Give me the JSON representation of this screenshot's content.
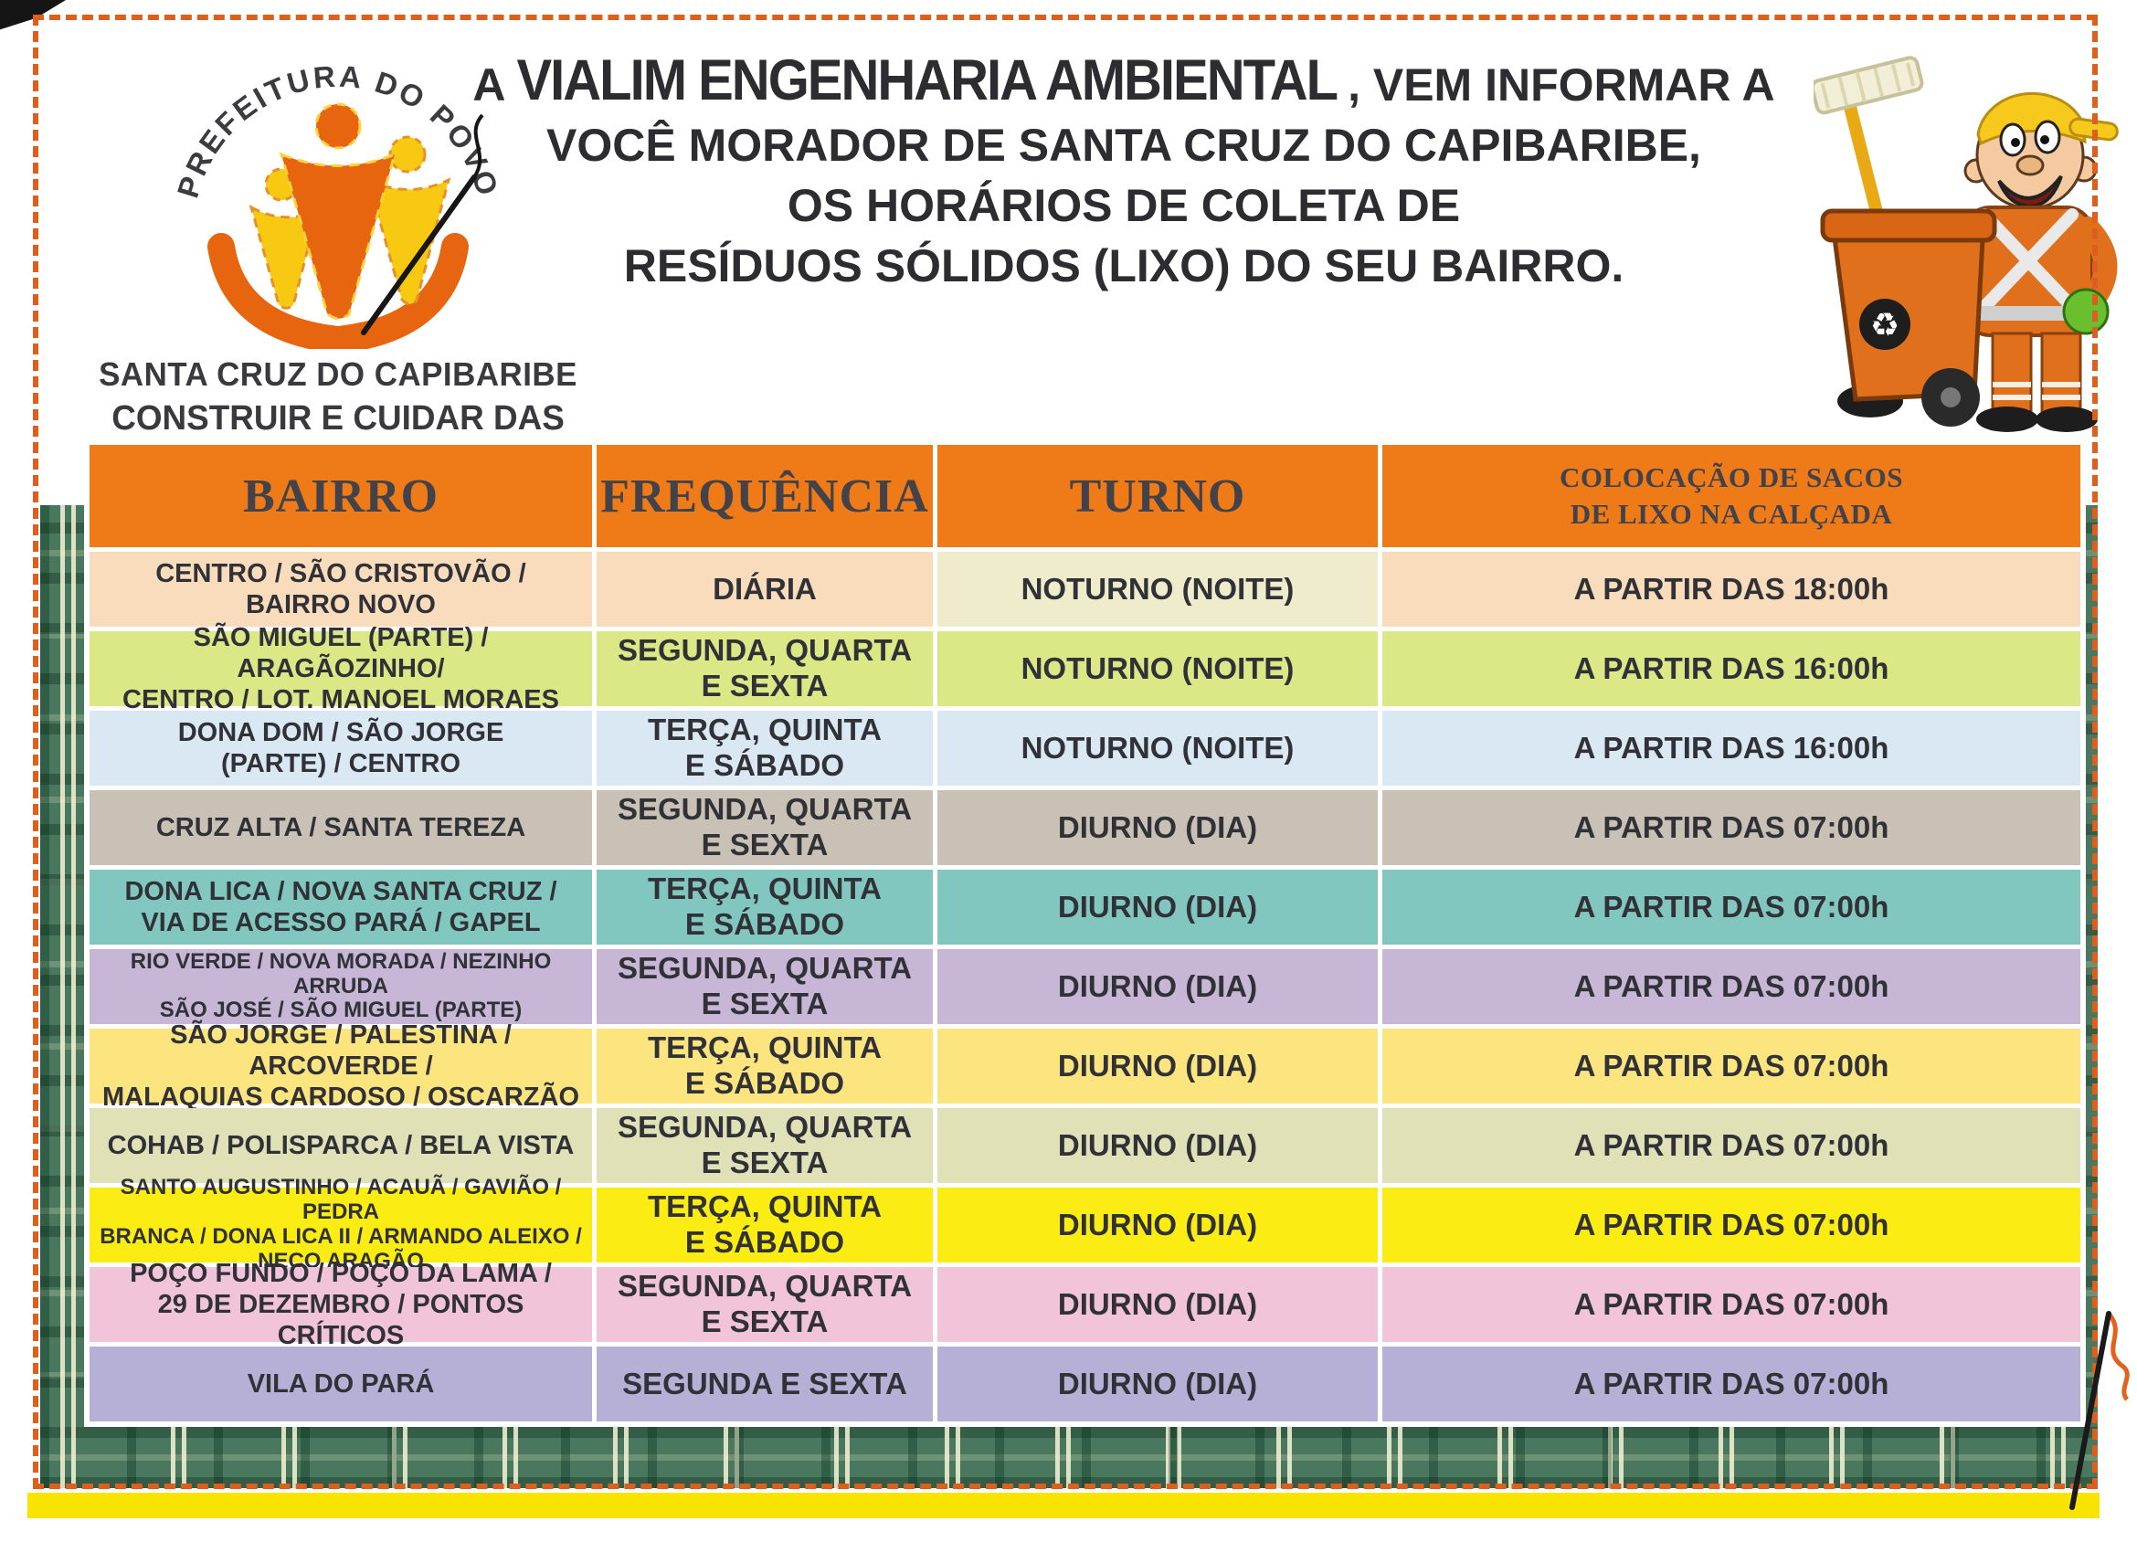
{
  "logo": {
    "arc_text": "PREFEITURA DO POVO",
    "city": "SANTA CRUZ DO CAPIBARIBE",
    "slogan": "CONSTRUIR E CUIDAR DAS PESSOAS"
  },
  "title": {
    "line1_prefix": "A",
    "line1_company": "VIALIM ENGENHARIA AMBIENTAL",
    "line1_suffix": ", VEM INFORMAR A",
    "line2": "VOCÊ MORADOR DE SANTA CRUZ DO CAPIBARIBE,",
    "line3": "OS HORÁRIOS DE COLETA DE",
    "line4": "RESÍDUOS SÓLIDOS (LIXO) DO SEU BAIRRO."
  },
  "icons": {
    "recycle_icon": "♻"
  },
  "colors": {
    "header_orange": "#ee7a18",
    "dashed_border": "#dd5f1d",
    "yellow_strip": "#f8e400",
    "plaid_green": "#49785f"
  },
  "table": {
    "headers": [
      "BAIRRO",
      "FREQUÊNCIA",
      "TURNO"
    ],
    "header4_line1": "COLOCAÇÃO DE SACOS",
    "header4_line2": "DE LIXO NA CALÇADA",
    "rows": [
      {
        "bairro": "CENTRO / SÃO CRISTOVÃO /\nBAIRRO NOVO",
        "frequencia": "DIÁRIA",
        "turno": "NOTURNO (NOITE)",
        "colocacao": "A PARTIR DAS 18:00h",
        "color": "#f9dcbb",
        "turno_color": "#eeeccb",
        "small": false
      },
      {
        "bairro": "SÃO MIGUEL (PARTE) / ARAGÃOZINHO/\nCENTRO / LOT. MANOEL MORAES",
        "frequencia": "SEGUNDA, QUARTA\nE SEXTA",
        "turno": "NOTURNO (NOITE)",
        "colocacao": "A PARTIR DAS 16:00h",
        "color": "#dce785",
        "small": false
      },
      {
        "bairro": "DONA DOM / SÃO JORGE\n(PARTE) / CENTRO",
        "frequencia": "TERÇA, QUINTA\nE SÁBADO",
        "turno": "NOTURNO (NOITE)",
        "colocacao": "A PARTIR DAS 16:00h",
        "color": "#d9e8f3",
        "small": false
      },
      {
        "bairro": "CRUZ ALTA / SANTA TEREZA",
        "frequencia": "SEGUNDA, QUARTA\nE SEXTA",
        "turno": "DIURNO (DIA)",
        "colocacao": "A PARTIR DAS 07:00h",
        "color": "#c9c1b5",
        "small": false
      },
      {
        "bairro": "DONA LICA / NOVA SANTA CRUZ /\nVIA DE ACESSO PARÁ / GAPEL",
        "frequencia": "TERÇA, QUINTA\nE SÁBADO",
        "turno": "DIURNO (DIA)",
        "colocacao": "A PARTIR DAS 07:00h",
        "color": "#82c7bf",
        "small": false
      },
      {
        "bairro": "RIO VERDE / NOVA MORADA / NEZINHO ARRUDA\nSÃO JOSÉ / SÃO MIGUEL (PARTE)",
        "frequencia": "SEGUNDA, QUARTA\nE SEXTA",
        "turno": "DIURNO (DIA)",
        "colocacao": "A PARTIR DAS 07:00h",
        "color": "#c7b6d6",
        "small": true
      },
      {
        "bairro": "SÃO JORGE / PALESTINA / ARCOVERDE /\nMALAQUIAS CARDOSO / OSCARZÃO",
        "frequencia": "TERÇA, QUINTA\nE SÁBADO",
        "turno": "DIURNO (DIA)",
        "colocacao": "A PARTIR DAS 07:00h",
        "color": "#fce47e",
        "small": false
      },
      {
        "bairro": "COHAB / POLISPARCA / BELA VISTA",
        "frequencia": "SEGUNDA, QUARTA\nE SEXTA",
        "turno": "DIURNO (DIA)",
        "colocacao": "A PARTIR DAS 07:00h",
        "color": "#e0e1b6",
        "small": false
      },
      {
        "bairro": "SANTO AUGUSTINHO / ACAUÃ / GAVIÃO / PEDRA\nBRANCA / DONA LICA II / ARMANDO ALEIXO /\nNECO ARAGÃO",
        "frequencia": "TERÇA, QUINTA\nE SÁBADO",
        "turno": "DIURNO (DIA)",
        "colocacao": "A PARTIR DAS 07:00h",
        "color": "#fbec13",
        "small": true
      },
      {
        "bairro": "POÇO FUNDO / POÇO DA LAMA /\n29 DE DEZEMBRO / PONTOS CRÍTICOS",
        "frequencia": "SEGUNDA, QUARTA\nE SEXTA",
        "turno": "DIURNO (DIA)",
        "colocacao": "A PARTIR DAS 07:00h",
        "color": "#f2c4da",
        "small": false
      },
      {
        "bairro": "VILA DO PARÁ",
        "frequencia": "SEGUNDA E SEXTA",
        "turno": "DIURNO (DIA)",
        "colocacao": "A PARTIR DAS 07:00h",
        "color": "#b6b0d7",
        "small": false
      }
    ]
  }
}
